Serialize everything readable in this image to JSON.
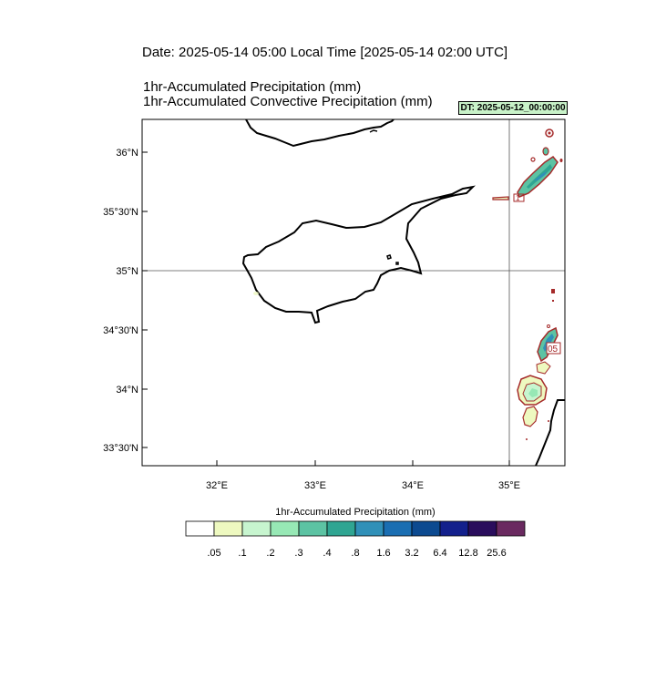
{
  "titles": {
    "date": "Date: 2025-05-14  05:00 Local Time [2025-05-14  02:00 UTC]",
    "precip": "1hr-Accumulated Precipitation   (mm)",
    "convective": "1hr-Accumulated Convective Precipitation   (mm)",
    "dt_badge": "DT: 2025-05-12_00:00:00"
  },
  "map": {
    "lat_ticks": [
      "36°N",
      "35°30'N",
      "35°N",
      "34°30'N",
      "34°N",
      "33°30'N"
    ],
    "lon_ticks": [
      "32°E",
      "33°E",
      "34°E",
      "35°E"
    ],
    "grid_lines": {
      "lat": "35°N",
      "lon": "35°E"
    },
    "contour_labels": [
      "1",
      "05"
    ],
    "colors": {
      "coastline": "#000000",
      "convective_contour": "#a52a2a",
      "grid": "#555555"
    }
  },
  "colorbar": {
    "title": "1hr-Accumulated Precipitation  (mm)",
    "labels": [
      ".05",
      ".1",
      ".2",
      ".3",
      ".4",
      ".8",
      "1.6",
      "3.2",
      "6.4",
      "12.8",
      "25.6"
    ],
    "colors": [
      "#ffffff",
      "#eef9c0",
      "#c7f5cf",
      "#97e8b5",
      "#5cc3a3",
      "#2fa592",
      "#3090b8",
      "#1a6eb2",
      "#0c4a90",
      "#13208c",
      "#2a0d5c",
      "#6a2a60"
    ]
  }
}
